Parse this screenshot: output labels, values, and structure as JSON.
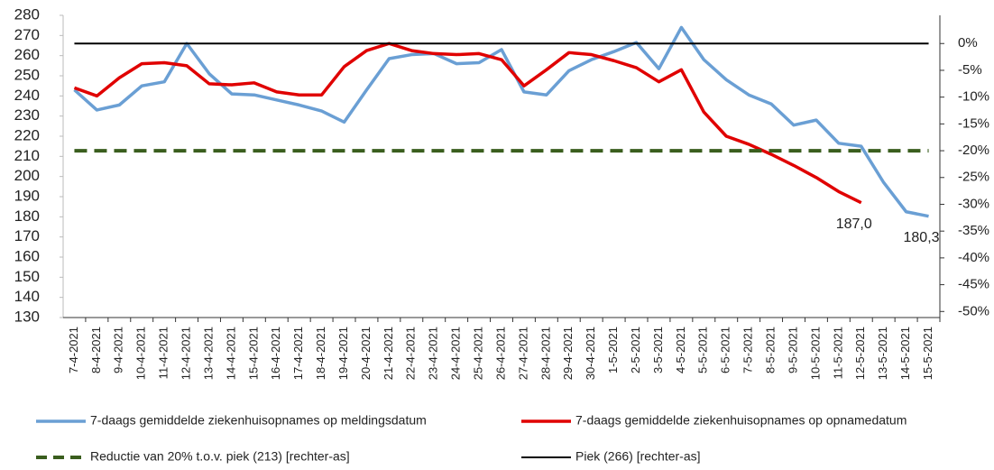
{
  "chart_data": {
    "type": "line",
    "categories": [
      "7-4-2021",
      "8-4-2021",
      "9-4-2021",
      "10-4-2021",
      "11-4-2021",
      "12-4-2021",
      "13-4-2021",
      "14-4-2021",
      "15-4-2021",
      "16-4-2021",
      "17-4-2021",
      "18-4-2021",
      "19-4-2021",
      "20-4-2021",
      "21-4-2021",
      "22-4-2021",
      "23-4-2021",
      "24-4-2021",
      "25-4-2021",
      "26-4-2021",
      "27-4-2021",
      "28-4-2021",
      "29-4-2021",
      "30-4-2021",
      "1-5-2021",
      "2-5-2021",
      "3-5-2021",
      "4-5-2021",
      "5-5-2021",
      "6-5-2021",
      "7-5-2021",
      "8-5-2021",
      "9-5-2021",
      "10-5-2021",
      "11-5-2021",
      "12-5-2021",
      "13-5-2021",
      "14-5-2021",
      "15-5-2021"
    ],
    "series": [
      {
        "name": "7-daags gemiddelde ziekenhuisopnames op meldingsdatum",
        "color": "#6a9fd4",
        "values": [
          243,
          233,
          235.5,
          245,
          247,
          266,
          251,
          241,
          240.5,
          238,
          235.5,
          232.5,
          227,
          243,
          258.5,
          260.5,
          261,
          256,
          256.5,
          263,
          242,
          240.5,
          252.5,
          258,
          262,
          266.5,
          253.5,
          274,
          258,
          248,
          240.5,
          236,
          225.5,
          228,
          216.5,
          215,
          197,
          182.5,
          180.3
        ],
        "value_labels": [
          null,
          null,
          null,
          null,
          null,
          null,
          null,
          null,
          null,
          null,
          null,
          null,
          null,
          null,
          null,
          null,
          null,
          null,
          null,
          null,
          null,
          null,
          null,
          null,
          null,
          null,
          null,
          null,
          null,
          null,
          null,
          null,
          null,
          null,
          null,
          null,
          null,
          null,
          "180,3"
        ]
      },
      {
        "name": "7-daags gemiddelde ziekenhuisopnames op opnamedatum",
        "color": "#e00000",
        "values": [
          244,
          240,
          249,
          256,
          256.5,
          255,
          246,
          245.5,
          246.5,
          242,
          240.5,
          240.5,
          254.5,
          262.5,
          266,
          262.5,
          261,
          260.5,
          261,
          258,
          245,
          253,
          261.5,
          260.5,
          257.5,
          254,
          247,
          253,
          232,
          220,
          216,
          211,
          205.5,
          199.5,
          192.5,
          187.0,
          null,
          null,
          null
        ],
        "value_labels": [
          null,
          null,
          null,
          null,
          null,
          null,
          null,
          null,
          null,
          null,
          null,
          null,
          null,
          null,
          null,
          null,
          null,
          null,
          null,
          null,
          null,
          null,
          null,
          null,
          null,
          null,
          null,
          null,
          null,
          null,
          null,
          null,
          null,
          null,
          null,
          "187,0",
          null,
          null,
          null
        ]
      },
      {
        "name": "Reductie van 20% t.o.v. piek (213) [rechter-as]",
        "color": "#3a5e1e",
        "dashed": true,
        "axis": "y2",
        "values": [
          -20,
          -20,
          -20,
          -20,
          -20,
          -20,
          -20,
          -20,
          -20,
          -20,
          -20,
          -20,
          -20,
          -20,
          -20,
          -20,
          -20,
          -20,
          -20,
          -20,
          -20,
          -20,
          -20,
          -20,
          -20,
          -20,
          -20,
          -20,
          -20,
          -20,
          -20,
          -20,
          -20,
          -20,
          -20,
          -20,
          -20,
          -20,
          -20
        ]
      },
      {
        "name": "Piek (266) [rechter-as]",
        "color": "#000000",
        "axis": "y2",
        "values": [
          0,
          0,
          0,
          0,
          0,
          0,
          0,
          0,
          0,
          0,
          0,
          0,
          0,
          0,
          0,
          0,
          0,
          0,
          0,
          0,
          0,
          0,
          0,
          0,
          0,
          0,
          0,
          0,
          0,
          0,
          0,
          0,
          0,
          0,
          0,
          0,
          0,
          0,
          0
        ]
      }
    ],
    "ylim": [
      130,
      280
    ],
    "yticks": [
      130,
      140,
      150,
      160,
      170,
      180,
      190,
      200,
      210,
      220,
      230,
      240,
      250,
      260,
      270,
      280
    ],
    "y2lim": [
      -51.13,
      5.26
    ],
    "y2ticks": [
      {
        "value": -50,
        "label": "-50%"
      },
      {
        "value": -45,
        "label": "-45%"
      },
      {
        "value": -40,
        "label": "-40%"
      },
      {
        "value": -35,
        "label": "-35%"
      },
      {
        "value": -30,
        "label": "-30%"
      },
      {
        "value": -25,
        "label": "-25%"
      },
      {
        "value": -20,
        "label": "-20%"
      },
      {
        "value": -15,
        "label": "-15%"
      },
      {
        "value": -10,
        "label": "-10%"
      },
      {
        "value": -5,
        "label": "-5%"
      },
      {
        "value": 0,
        "label": "0%"
      }
    ]
  }
}
